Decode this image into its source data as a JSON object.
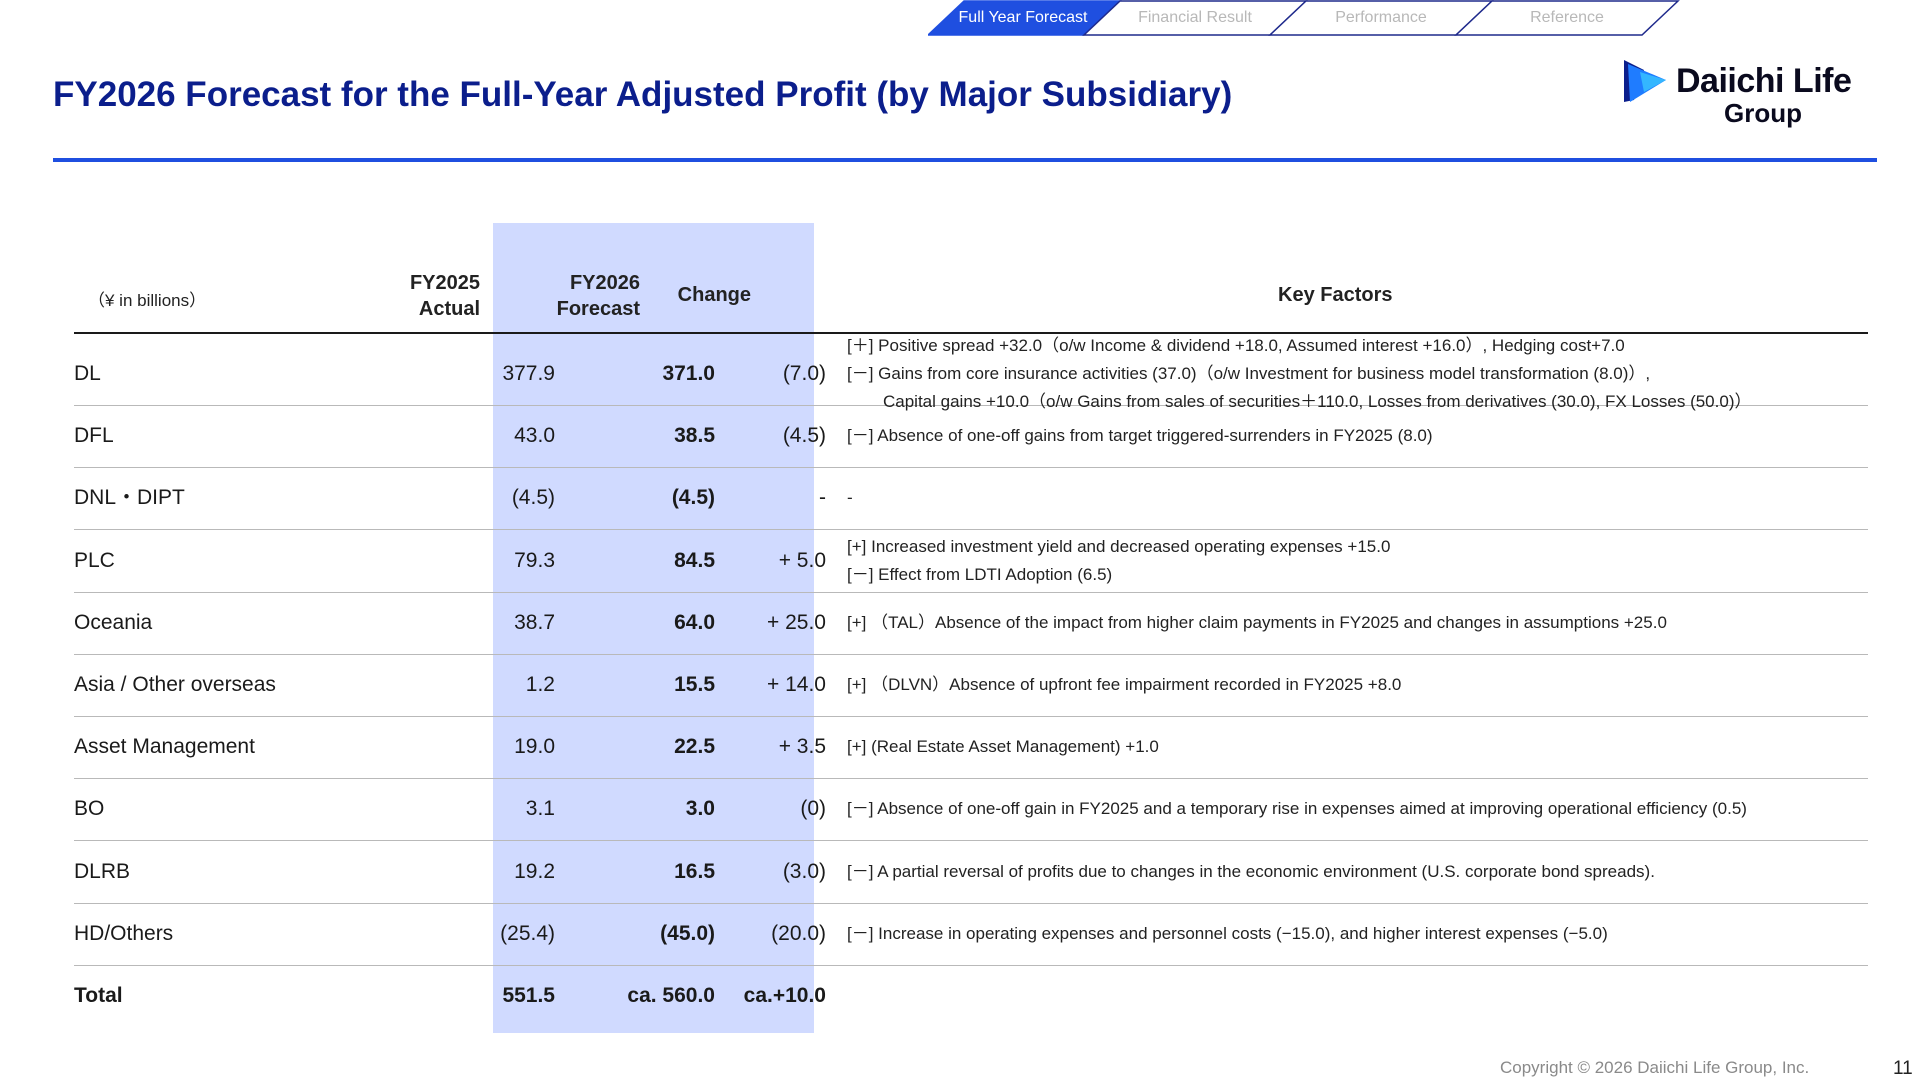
{
  "nav": {
    "tabs": [
      "Full Year Forecast",
      "Financial Result",
      "Performance",
      "Reference"
    ],
    "active_index": 0,
    "active_color": "#1f4fe0"
  },
  "title": "FY2026 Forecast for the Full-Year Adjusted Profit (by Major Subsidiary)",
  "logo": {
    "name": "Daiichi Life",
    "sub": "Group"
  },
  "table": {
    "unit": "（¥ in billions）",
    "headers": {
      "fy2025": [
        "FY2025",
        "Actual"
      ],
      "fy2026": [
        "FY2026",
        "Forecast"
      ],
      "change": "Change",
      "factors": "Key Factors"
    },
    "rows": [
      {
        "name": "DL",
        "fy2025": "377.9",
        "fy2026": "371.0",
        "change": "(7.0)",
        "factors": [
          "[＋] Positive spread +32.0（o/w  Income & dividend +18.0, Assumed interest +16.0）, Hedging cost+7.0",
          "[－] Gains from core insurance activities (37.0)（o/w Investment for business model transformation (8.0)）,",
          "Capital gains +10.0（o/w Gains from sales of securities＋110.0, Losses from derivatives (30.0), FX Losses (50.0)）"
        ]
      },
      {
        "name": "DFL",
        "fy2025": "43.0",
        "fy2026": "38.5",
        "change": "(4.5)",
        "factors": [
          "[－] Absence of one-off gains from target triggered-surrenders in FY2025 (8.0)"
        ]
      },
      {
        "name": "DNL・DIPT",
        "fy2025": "(4.5)",
        "fy2026": "(4.5)",
        "change": "-",
        "factors": [
          "-"
        ]
      },
      {
        "name": "PLC",
        "fy2025": "79.3",
        "fy2026": "84.5",
        "change": "+ 5.0",
        "factors": [
          "[+]  Increased investment yield and decreased operating expenses +15.0",
          "[－]  Effect from LDTI Adoption (6.5)"
        ]
      },
      {
        "name": "Oceania",
        "fy2025": "38.7",
        "fy2026": "64.0",
        "change": "+ 25.0",
        "factors": [
          "[+] （TAL）Absence of the impact from higher claim payments in FY2025 and changes in assumptions +25.0"
        ]
      },
      {
        "name": "Asia / Other overseas",
        "fy2025": "1.2",
        "fy2026": "15.5",
        "change": "+ 14.0",
        "factors": [
          "[+] （DLVN）Absence of upfront fee impairment recorded in FY2025 +8.0"
        ]
      },
      {
        "name": "Asset Management",
        "fy2025": "19.0",
        "fy2026": "22.5",
        "change": "+ 3.5",
        "factors": [
          "[+]  (Real Estate Asset Management) +1.0"
        ]
      },
      {
        "name": "BO",
        "fy2025": "3.1",
        "fy2026": "3.0",
        "change": "(0)",
        "factors": [
          "[－] Absence of one-off gain in FY2025 and a temporary rise in expenses aimed at improving operational efficiency (0.5)"
        ]
      },
      {
        "name": "DLRB",
        "fy2025": "19.2",
        "fy2026": "16.5",
        "change": "(3.0)",
        "factors": [
          "[－] A partial reversal of profits due to changes in the economic environment (U.S. corporate bond spreads)."
        ]
      },
      {
        "name": "HD/Others",
        "fy2025": "(25.4)",
        "fy2026": "(45.0)",
        "change": "(20.0)",
        "factors": [
          "[－] Increase in operating expenses and personnel costs (−15.0), and higher interest expenses (−5.0)"
        ]
      },
      {
        "name": "Total",
        "fy2025": "551.5",
        "fy2026": "ca. 560.0",
        "change": "ca.+10.0",
        "factors": []
      }
    ]
  },
  "footer": {
    "copyright": "Copyright © 2026 Daiichi Life Group, Inc.",
    "page": "11"
  },
  "colors": {
    "title": "#0b1e8c",
    "rule": "#1f4fe0",
    "highlight": "#d0daff"
  }
}
